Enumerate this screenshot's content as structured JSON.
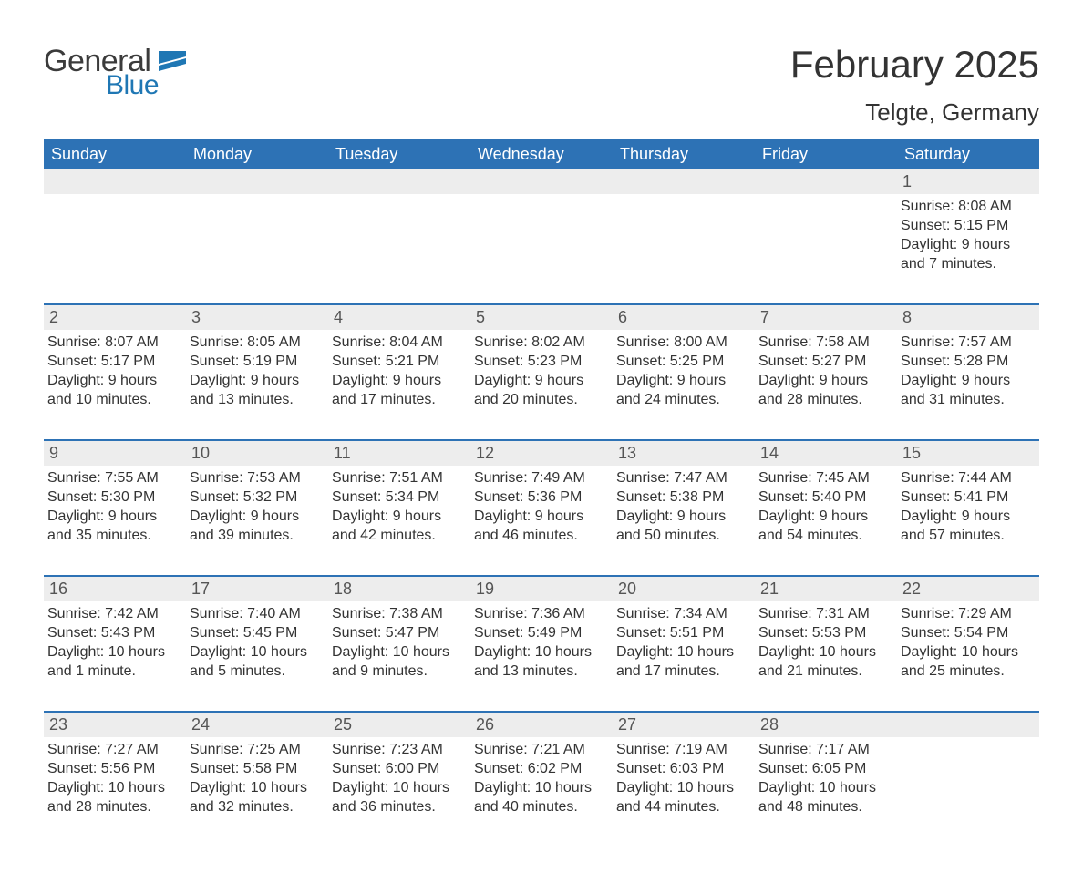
{
  "brand": {
    "name_part1": "General",
    "name_part2": "Blue",
    "colors": {
      "brand_blue": "#1f77b4",
      "text_dark": "#3b3b3b"
    }
  },
  "header": {
    "month_title": "February 2025",
    "location": "Telgte, Germany"
  },
  "style": {
    "header_bg": "#2d72b5",
    "header_text": "#ffffff",
    "daynum_bg": "#ededed",
    "daynum_border": "#2d72b5",
    "body_text": "#333333",
    "daynum_text": "#555555",
    "page_bg": "#ffffff",
    "weekday_fontsize": 18,
    "title_fontsize": 42,
    "location_fontsize": 26,
    "body_fontsize": 16
  },
  "weekdays": [
    "Sunday",
    "Monday",
    "Tuesday",
    "Wednesday",
    "Thursday",
    "Friday",
    "Saturday"
  ],
  "weeks": [
    [
      {
        "day": "",
        "lines": []
      },
      {
        "day": "",
        "lines": []
      },
      {
        "day": "",
        "lines": []
      },
      {
        "day": "",
        "lines": []
      },
      {
        "day": "",
        "lines": []
      },
      {
        "day": "",
        "lines": []
      },
      {
        "day": "1",
        "lines": [
          "Sunrise: 8:08 AM",
          "Sunset: 5:15 PM",
          "Daylight: 9 hours and 7 minutes."
        ]
      }
    ],
    [
      {
        "day": "2",
        "lines": [
          "Sunrise: 8:07 AM",
          "Sunset: 5:17 PM",
          "Daylight: 9 hours and 10 minutes."
        ]
      },
      {
        "day": "3",
        "lines": [
          "Sunrise: 8:05 AM",
          "Sunset: 5:19 PM",
          "Daylight: 9 hours and 13 minutes."
        ]
      },
      {
        "day": "4",
        "lines": [
          "Sunrise: 8:04 AM",
          "Sunset: 5:21 PM",
          "Daylight: 9 hours and 17 minutes."
        ]
      },
      {
        "day": "5",
        "lines": [
          "Sunrise: 8:02 AM",
          "Sunset: 5:23 PM",
          "Daylight: 9 hours and 20 minutes."
        ]
      },
      {
        "day": "6",
        "lines": [
          "Sunrise: 8:00 AM",
          "Sunset: 5:25 PM",
          "Daylight: 9 hours and 24 minutes."
        ]
      },
      {
        "day": "7",
        "lines": [
          "Sunrise: 7:58 AM",
          "Sunset: 5:27 PM",
          "Daylight: 9 hours and 28 minutes."
        ]
      },
      {
        "day": "8",
        "lines": [
          "Sunrise: 7:57 AM",
          "Sunset: 5:28 PM",
          "Daylight: 9 hours and 31 minutes."
        ]
      }
    ],
    [
      {
        "day": "9",
        "lines": [
          "Sunrise: 7:55 AM",
          "Sunset: 5:30 PM",
          "Daylight: 9 hours and 35 minutes."
        ]
      },
      {
        "day": "10",
        "lines": [
          "Sunrise: 7:53 AM",
          "Sunset: 5:32 PM",
          "Daylight: 9 hours and 39 minutes."
        ]
      },
      {
        "day": "11",
        "lines": [
          "Sunrise: 7:51 AM",
          "Sunset: 5:34 PM",
          "Daylight: 9 hours and 42 minutes."
        ]
      },
      {
        "day": "12",
        "lines": [
          "Sunrise: 7:49 AM",
          "Sunset: 5:36 PM",
          "Daylight: 9 hours and 46 minutes."
        ]
      },
      {
        "day": "13",
        "lines": [
          "Sunrise: 7:47 AM",
          "Sunset: 5:38 PM",
          "Daylight: 9 hours and 50 minutes."
        ]
      },
      {
        "day": "14",
        "lines": [
          "Sunrise: 7:45 AM",
          "Sunset: 5:40 PM",
          "Daylight: 9 hours and 54 minutes."
        ]
      },
      {
        "day": "15",
        "lines": [
          "Sunrise: 7:44 AM",
          "Sunset: 5:41 PM",
          "Daylight: 9 hours and 57 minutes."
        ]
      }
    ],
    [
      {
        "day": "16",
        "lines": [
          "Sunrise: 7:42 AM",
          "Sunset: 5:43 PM",
          "Daylight: 10 hours and 1 minute."
        ]
      },
      {
        "day": "17",
        "lines": [
          "Sunrise: 7:40 AM",
          "Sunset: 5:45 PM",
          "Daylight: 10 hours and 5 minutes."
        ]
      },
      {
        "day": "18",
        "lines": [
          "Sunrise: 7:38 AM",
          "Sunset: 5:47 PM",
          "Daylight: 10 hours and 9 minutes."
        ]
      },
      {
        "day": "19",
        "lines": [
          "Sunrise: 7:36 AM",
          "Sunset: 5:49 PM",
          "Daylight: 10 hours and 13 minutes."
        ]
      },
      {
        "day": "20",
        "lines": [
          "Sunrise: 7:34 AM",
          "Sunset: 5:51 PM",
          "Daylight: 10 hours and 17 minutes."
        ]
      },
      {
        "day": "21",
        "lines": [
          "Sunrise: 7:31 AM",
          "Sunset: 5:53 PM",
          "Daylight: 10 hours and 21 minutes."
        ]
      },
      {
        "day": "22",
        "lines": [
          "Sunrise: 7:29 AM",
          "Sunset: 5:54 PM",
          "Daylight: 10 hours and 25 minutes."
        ]
      }
    ],
    [
      {
        "day": "23",
        "lines": [
          "Sunrise: 7:27 AM",
          "Sunset: 5:56 PM",
          "Daylight: 10 hours and 28 minutes."
        ]
      },
      {
        "day": "24",
        "lines": [
          "Sunrise: 7:25 AM",
          "Sunset: 5:58 PM",
          "Daylight: 10 hours and 32 minutes."
        ]
      },
      {
        "day": "25",
        "lines": [
          "Sunrise: 7:23 AM",
          "Sunset: 6:00 PM",
          "Daylight: 10 hours and 36 minutes."
        ]
      },
      {
        "day": "26",
        "lines": [
          "Sunrise: 7:21 AM",
          "Sunset: 6:02 PM",
          "Daylight: 10 hours and 40 minutes."
        ]
      },
      {
        "day": "27",
        "lines": [
          "Sunrise: 7:19 AM",
          "Sunset: 6:03 PM",
          "Daylight: 10 hours and 44 minutes."
        ]
      },
      {
        "day": "28",
        "lines": [
          "Sunrise: 7:17 AM",
          "Sunset: 6:05 PM",
          "Daylight: 10 hours and 48 minutes."
        ]
      },
      {
        "day": "",
        "lines": []
      }
    ]
  ]
}
